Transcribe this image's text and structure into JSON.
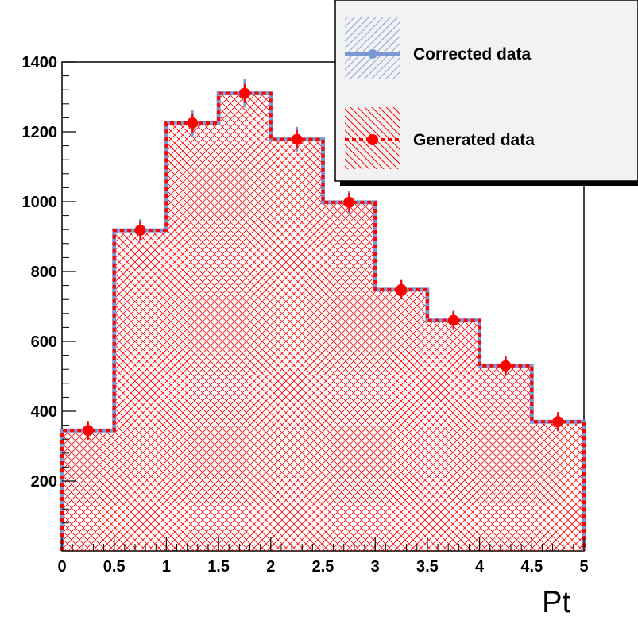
{
  "chart_data": {
    "type": "bar",
    "subtype": "histogram",
    "title": "",
    "xlabel": "Pt",
    "ylabel": "",
    "xlim": [
      0,
      5
    ],
    "ylim": [
      0,
      1400
    ],
    "x_ticks": [
      "0",
      "0.5",
      "1",
      "1.5",
      "2",
      "2.5",
      "3",
      "3.5",
      "4",
      "4.5",
      "5"
    ],
    "y_ticks": [
      "200",
      "400",
      "600",
      "800",
      "1000",
      "1200",
      "1400"
    ],
    "bin_edges": [
      0,
      0.5,
      1,
      1.5,
      2,
      2.5,
      3,
      3.5,
      4,
      4.5,
      5
    ],
    "grid": false,
    "legend_placement": "top-right",
    "series": [
      {
        "name": "Corrected data",
        "color": "#7b9ad4",
        "style": "hatched-diagonal",
        "values": [
          345,
          918,
          1225,
          1310,
          1178,
          998,
          748,
          660,
          530,
          370
        ],
        "errors": [
          18,
          32,
          38,
          40,
          36,
          33,
          28,
          26,
          24,
          20
        ]
      },
      {
        "name": "Generated data",
        "color": "#ff0000",
        "style": "crosshatch-dashed",
        "values": [
          345,
          918,
          1225,
          1310,
          1178,
          998,
          748,
          660,
          530,
          370
        ]
      }
    ]
  }
}
